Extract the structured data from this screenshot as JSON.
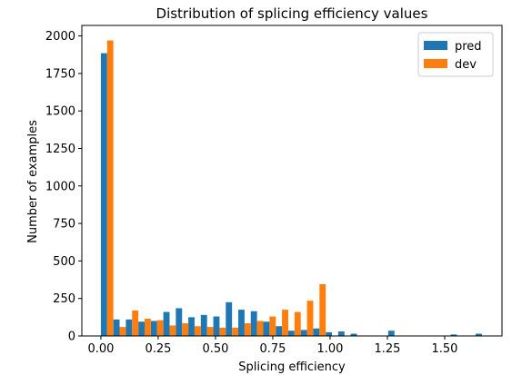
{
  "chart_data": {
    "type": "bar",
    "title": "Distribution of splicing efficiency values",
    "xlabel": "Splicing efficiency",
    "ylabel": "Number of examples",
    "xlim": [
      -0.083,
      1.75
    ],
    "ylim": [
      0,
      2070
    ],
    "x_ticks": [
      {
        "value": 0.0,
        "label": "0.00"
      },
      {
        "value": 0.25,
        "label": "0.25"
      },
      {
        "value": 0.5,
        "label": "0.50"
      },
      {
        "value": 0.75,
        "label": "0.75"
      },
      {
        "value": 1.0,
        "label": "1.00"
      },
      {
        "value": 1.25,
        "label": "1.25"
      },
      {
        "value": 1.5,
        "label": "1.50"
      }
    ],
    "y_ticks": [
      {
        "value": 0,
        "label": "0"
      },
      {
        "value": 250,
        "label": "250"
      },
      {
        "value": 500,
        "label": "500"
      },
      {
        "value": 750,
        "label": "750"
      },
      {
        "value": 1000,
        "label": "1000"
      },
      {
        "value": 1250,
        "label": "1250"
      },
      {
        "value": 1500,
        "label": "1500"
      },
      {
        "value": 1750,
        "label": "1750"
      },
      {
        "value": 2000,
        "label": "2000"
      }
    ],
    "grid": false,
    "legend": "upper right",
    "bin_edges": [
      0,
      0.0545,
      0.109,
      0.1635,
      0.218,
      0.2725,
      0.327,
      0.3815,
      0.436,
      0.4905,
      0.545,
      0.5995,
      0.654,
      0.7085,
      0.763,
      0.8175,
      0.872,
      0.9265,
      0.981,
      1.0355,
      1.09,
      1.1445,
      1.199,
      1.2535,
      1.308,
      1.3625,
      1.417,
      1.4715,
      1.526,
      1.5805,
      1.635,
      1.6895
    ],
    "series": [
      {
        "name": "pred",
        "color": "#1f77b4",
        "values": [
          1885,
          110,
          110,
          95,
          100,
          160,
          185,
          125,
          140,
          130,
          225,
          175,
          165,
          95,
          65,
          35,
          40,
          50,
          25,
          30,
          15,
          0,
          0,
          35,
          0,
          0,
          0,
          0,
          10,
          0,
          15
        ]
      },
      {
        "name": "dev",
        "color": "#ff7f0e",
        "values": [
          1970,
          60,
          170,
          115,
          105,
          70,
          85,
          65,
          60,
          55,
          55,
          85,
          100,
          130,
          175,
          160,
          235,
          345,
          0,
          0,
          0,
          0,
          0,
          0,
          0,
          0,
          0,
          0,
          0,
          0,
          0
        ]
      }
    ]
  }
}
